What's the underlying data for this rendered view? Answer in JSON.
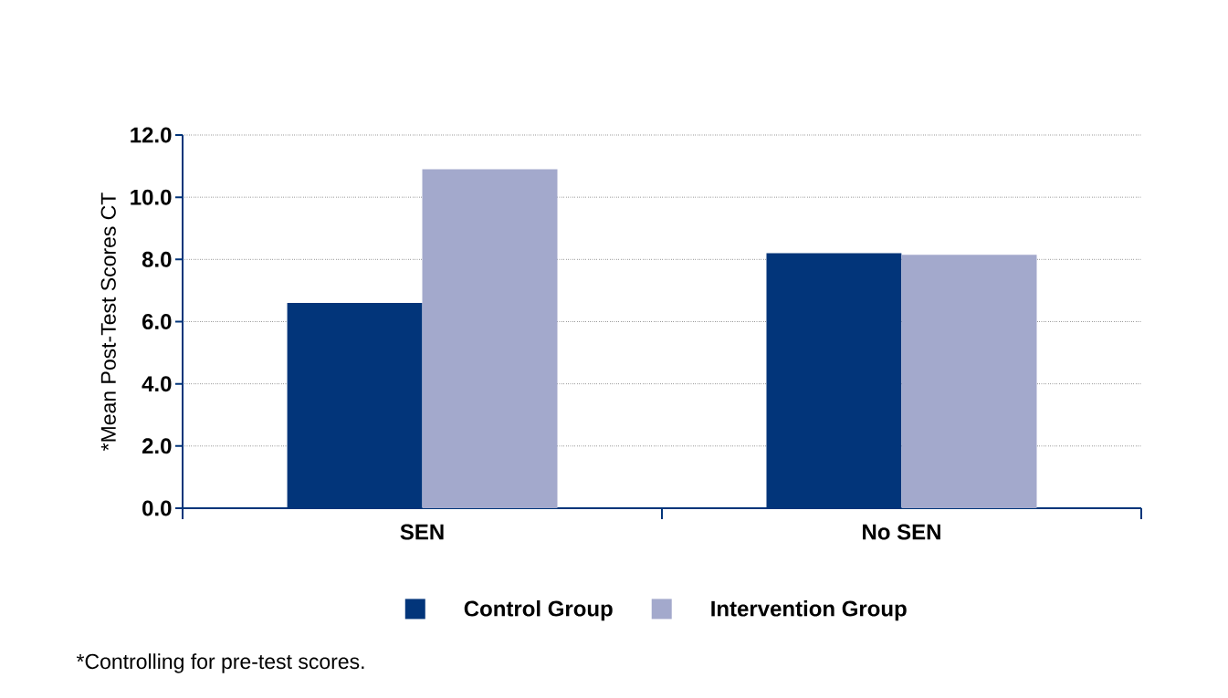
{
  "chart_data": {
    "type": "bar",
    "ylabel": "*Mean Post-Test Scores CT",
    "categories": [
      "SEN",
      "No SEN"
    ],
    "series": [
      {
        "name": "Control Group",
        "color": "#02357a",
        "values": [
          6.6,
          8.2
        ]
      },
      {
        "name": "Intervention Group",
        "color": "#a3a9cc",
        "values": [
          10.9,
          8.15
        ]
      }
    ],
    "ylim": [
      0,
      12
    ],
    "yticks": [
      {
        "value": 0,
        "label": "0.0"
      },
      {
        "value": 2,
        "label": "2.0"
      },
      {
        "value": 4,
        "label": "4.0"
      },
      {
        "value": 6,
        "label": "6.0"
      },
      {
        "value": 8,
        "label": "8.0"
      },
      {
        "value": 10,
        "label": "10.0"
      },
      {
        "value": 12,
        "label": "12.0"
      }
    ],
    "grid": "y",
    "legend": "bottom",
    "annotations": [
      "*Controlling for pre-test scores."
    ]
  }
}
